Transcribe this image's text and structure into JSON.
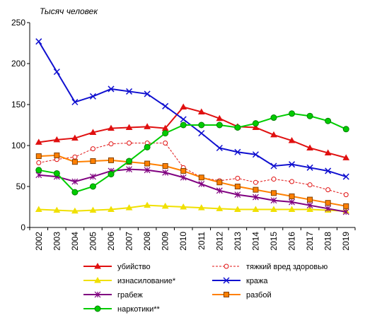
{
  "chart_data": {
    "type": "line",
    "title": "",
    "unit_label": "Тысяч человек",
    "xlabel": "",
    "ylabel": "",
    "ylim": [
      0,
      250
    ],
    "yticks": [
      0,
      50,
      100,
      150,
      200,
      250
    ],
    "grid": false,
    "legend_position": "bottom",
    "x": [
      "2002",
      "2003",
      "2004",
      "2005",
      "2006",
      "2007",
      "2008",
      "2009",
      "2010",
      "2011",
      "2012",
      "2013",
      "2014",
      "2015",
      "2016",
      "2017",
      "2018",
      "2019"
    ],
    "series": [
      {
        "name": "убийство",
        "color": "#e01010",
        "marker": "triangle",
        "dashed": false,
        "values": [
          104,
          107,
          109,
          116,
          121,
          122,
          123,
          121,
          147,
          141,
          133,
          123,
          122,
          113,
          106,
          97,
          91,
          85
        ]
      },
      {
        "name": "тяжкий вред здоровью",
        "color": "#e01010",
        "marker": "circle-open",
        "dashed": true,
        "values": [
          79,
          83,
          86,
          96,
          102,
          103,
          103,
          103,
          73,
          61,
          57,
          60,
          55,
          59,
          56,
          52,
          46,
          40
        ]
      },
      {
        "name": "изнасилование*",
        "color": "#f0e000",
        "marker": "triangle",
        "dashed": false,
        "values": [
          22,
          21,
          20,
          21,
          22,
          24,
          27,
          26,
          25,
          24,
          23,
          22,
          22,
          22,
          22,
          22,
          21,
          20
        ]
      },
      {
        "name": "кража",
        "color": "#1010d0",
        "marker": "x",
        "dashed": false,
        "values": [
          227,
          190,
          153,
          160,
          169,
          166,
          163,
          148,
          132,
          115,
          97,
          92,
          89,
          75,
          77,
          73,
          69,
          62
        ]
      },
      {
        "name": "грабеж",
        "color": "#800080",
        "marker": "star",
        "dashed": false,
        "values": [
          64,
          62,
          56,
          62,
          69,
          71,
          70,
          67,
          61,
          53,
          45,
          40,
          37,
          33,
          31,
          27,
          23,
          19
        ]
      },
      {
        "name": "разбой",
        "color": "#ff8000",
        "marker": "square",
        "dashed": false,
        "values": [
          87,
          88,
          80,
          81,
          82,
          80,
          78,
          75,
          69,
          61,
          55,
          50,
          46,
          42,
          38,
          34,
          30,
          26
        ]
      },
      {
        "name": "наркотики**",
        "color": "#00cc00",
        "marker": "circle",
        "dashed": false,
        "values": [
          70,
          66,
          43,
          50,
          65,
          81,
          98,
          115,
          125,
          125,
          125,
          122,
          127,
          134,
          139,
          136,
          130,
          120
        ]
      }
    ]
  }
}
